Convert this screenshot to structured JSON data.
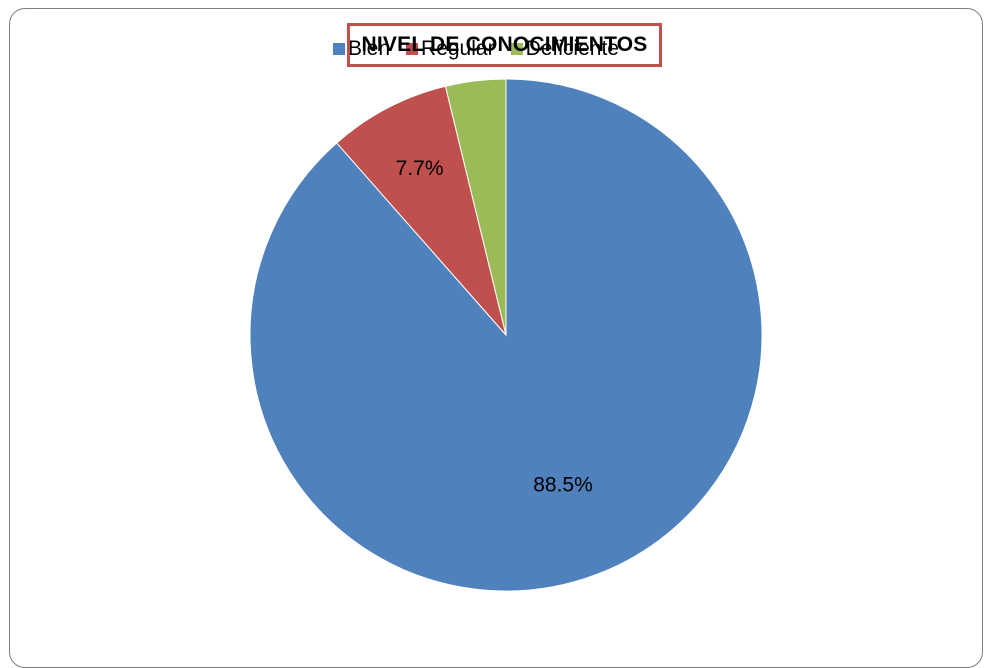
{
  "chart_data": {
    "type": "pie",
    "title": "NIVEL DE CONOCIMIENTOS",
    "categories": [
      "Bien",
      "Regular",
      "Deficiente"
    ],
    "values": [
      88.5,
      7.7,
      3.8
    ],
    "data_labels": [
      "88.5%",
      "7.7%",
      ""
    ],
    "colors": [
      "#4f81bd",
      "#c0504d",
      "#9bbb59"
    ],
    "legend_position": "top"
  }
}
